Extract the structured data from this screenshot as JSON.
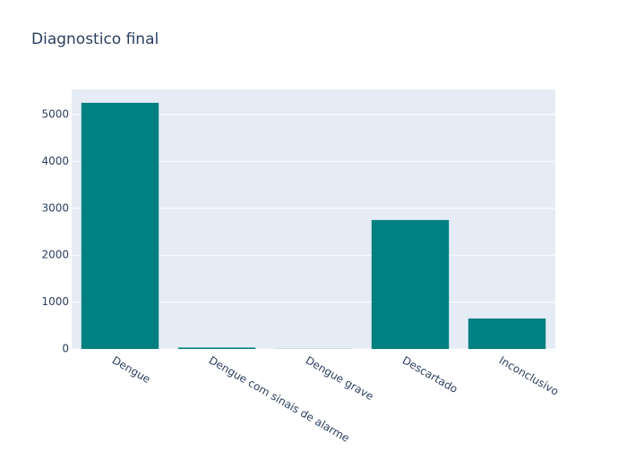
{
  "chart_data": {
    "type": "bar",
    "title": "Diagnostico final",
    "categories": [
      "Dengue",
      "Dengue com sinais de alarme",
      "Dengue grave",
      "Descartado",
      "Inconclusivo"
    ],
    "values": [
      5250,
      30,
      3,
      2750,
      650
    ],
    "color": "#008080",
    "ylim": [
      0,
      5534
    ],
    "yticks": [
      0,
      1000,
      2000,
      3000,
      4000,
      5000
    ],
    "grid": true
  }
}
